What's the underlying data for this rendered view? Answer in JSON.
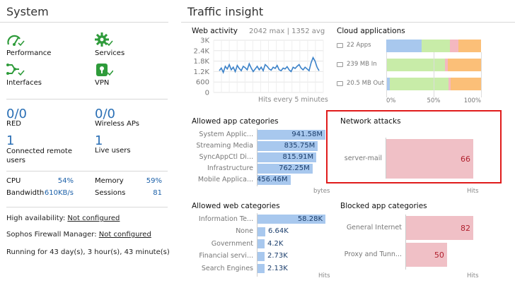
{
  "system": {
    "title": "System",
    "status_items": [
      {
        "label": "Performance",
        "icon": "performance-icon"
      },
      {
        "label": "Services",
        "icon": "gear-icon"
      },
      {
        "label": "Interfaces",
        "icon": "interfaces-icon"
      },
      {
        "label": "VPN",
        "icon": "vpn-lock-icon"
      }
    ],
    "counters": [
      {
        "value": "0/0",
        "label": "RED"
      },
      {
        "value": "0/0",
        "label": "Wireless APs"
      },
      {
        "value": "1",
        "label": "Connected remote users"
      },
      {
        "value": "1",
        "label": "Live users"
      }
    ],
    "stats": [
      {
        "label": "CPU",
        "value": "54%"
      },
      {
        "label": "Memory",
        "value": "59%"
      },
      {
        "label": "Bandwidth",
        "value": "610KB/s"
      },
      {
        "label": "Sessions",
        "value": "81"
      }
    ],
    "high_availability_label": "High availability:",
    "high_availability_value": "Not configured",
    "sfm_label": "Sophos Firewall Manager:",
    "sfm_value": "Not configured",
    "running": "Running for 43 day(s), 3 hour(s), 43 minute(s)"
  },
  "traffic": {
    "title": "Traffic insight",
    "web_activity": {
      "title": "Web activity",
      "summary": "2042 max | 1352 avg",
      "y_ticks": [
        "3K",
        "2.4K",
        "1.8K",
        "1.2K",
        "600",
        "0"
      ],
      "footer": "Hits every 5 minutes"
    },
    "cloud_apps": {
      "title": "Cloud applications",
      "rows": [
        {
          "label": "22 Apps",
          "icon": "apps-icon"
        },
        {
          "label": "239 MB In",
          "icon": "transfer-icon"
        },
        {
          "label": "20.5 MB Out",
          "icon": "transfer-icon"
        }
      ],
      "x_ticks": [
        "0%",
        "50%",
        "100%"
      ]
    },
    "allowed_app": {
      "title": "Allowed app categories",
      "unit": "bytes"
    },
    "network_attacks": {
      "title": "Network attacks",
      "unit": "Hits"
    },
    "allowed_web": {
      "title": "Allowed web categories",
      "unit": "Hits"
    },
    "blocked_app": {
      "title": "Blocked app categories",
      "unit": "Hits"
    }
  },
  "chart_data": [
    {
      "type": "line",
      "title": "Web activity",
      "xlabel": "Hits every 5 minutes",
      "ylim": [
        0,
        3000
      ],
      "y_ticks": [
        0,
        600,
        1200,
        1800,
        2400,
        3000
      ],
      "values": [
        1250,
        1400,
        1150,
        1500,
        1350,
        1600,
        1300,
        1450,
        1200,
        1550,
        1380,
        1250,
        1500,
        1420,
        1300,
        1650,
        1400,
        1200,
        1350,
        1500,
        1300,
        1450,
        1250,
        1600,
        1500,
        1350,
        1280,
        1450,
        1380,
        1550,
        1300,
        1250,
        1400,
        1350,
        1480,
        1300,
        1200,
        1450,
        1380,
        1500,
        1600,
        1400,
        1300,
        1450,
        1350,
        1250,
        1700,
        2000,
        1800,
        1450,
        1250
      ]
    },
    {
      "type": "bar",
      "title": "Cloud applications",
      "stacked_percent": true,
      "categories": [
        "22 Apps",
        "239 MB In",
        "20.5 MB Out"
      ],
      "series": [
        {
          "color": "#a8c8ee",
          "values": [
            37,
            0,
            4
          ]
        },
        {
          "color": "#c8eca8",
          "values": [
            30,
            62,
            62
          ]
        },
        {
          "color": "#f4b8c0",
          "values": [
            9,
            3,
            2
          ]
        },
        {
          "color": "#fbbf78",
          "values": [
            24,
            35,
            32
          ]
        }
      ],
      "x_ticks": [
        "0%",
        "50%",
        "100%"
      ]
    },
    {
      "type": "bar",
      "title": "Allowed app categories",
      "orientation": "horizontal",
      "categories": [
        "System Applic...",
        "Streaming Media",
        "SyncAppCtl Di...",
        "Infrastructure",
        "Mobile Applica..."
      ],
      "values": [
        941.58,
        835.75,
        815.91,
        762.25,
        456.46
      ],
      "value_labels": [
        "941.58M",
        "835.75M",
        "815.91M",
        "762.25M",
        "456.46M"
      ],
      "unit": "bytes"
    },
    {
      "type": "bar",
      "title": "Network attacks",
      "orientation": "horizontal",
      "categories": [
        "server-mail"
      ],
      "values": [
        66
      ],
      "value_labels": [
        "66"
      ],
      "unit": "Hits"
    },
    {
      "type": "bar",
      "title": "Allowed web categories",
      "orientation": "horizontal",
      "categories": [
        "Information Te...",
        "None",
        "Government",
        "Financial servi...",
        "Search Engines"
      ],
      "values": [
        58.28,
        6.64,
        4.2,
        2.73,
        2.13
      ],
      "value_labels": [
        "58.28K",
        "6.64K",
        "4.2K",
        "2.73K",
        "2.13K"
      ],
      "unit": "Hits"
    },
    {
      "type": "bar",
      "title": "Blocked app categories",
      "orientation": "horizontal",
      "categories": [
        "General Internet",
        "Proxy and Tunn..."
      ],
      "values": [
        82,
        50
      ],
      "value_labels": [
        "82",
        "50"
      ],
      "unit": "Hits"
    }
  ]
}
